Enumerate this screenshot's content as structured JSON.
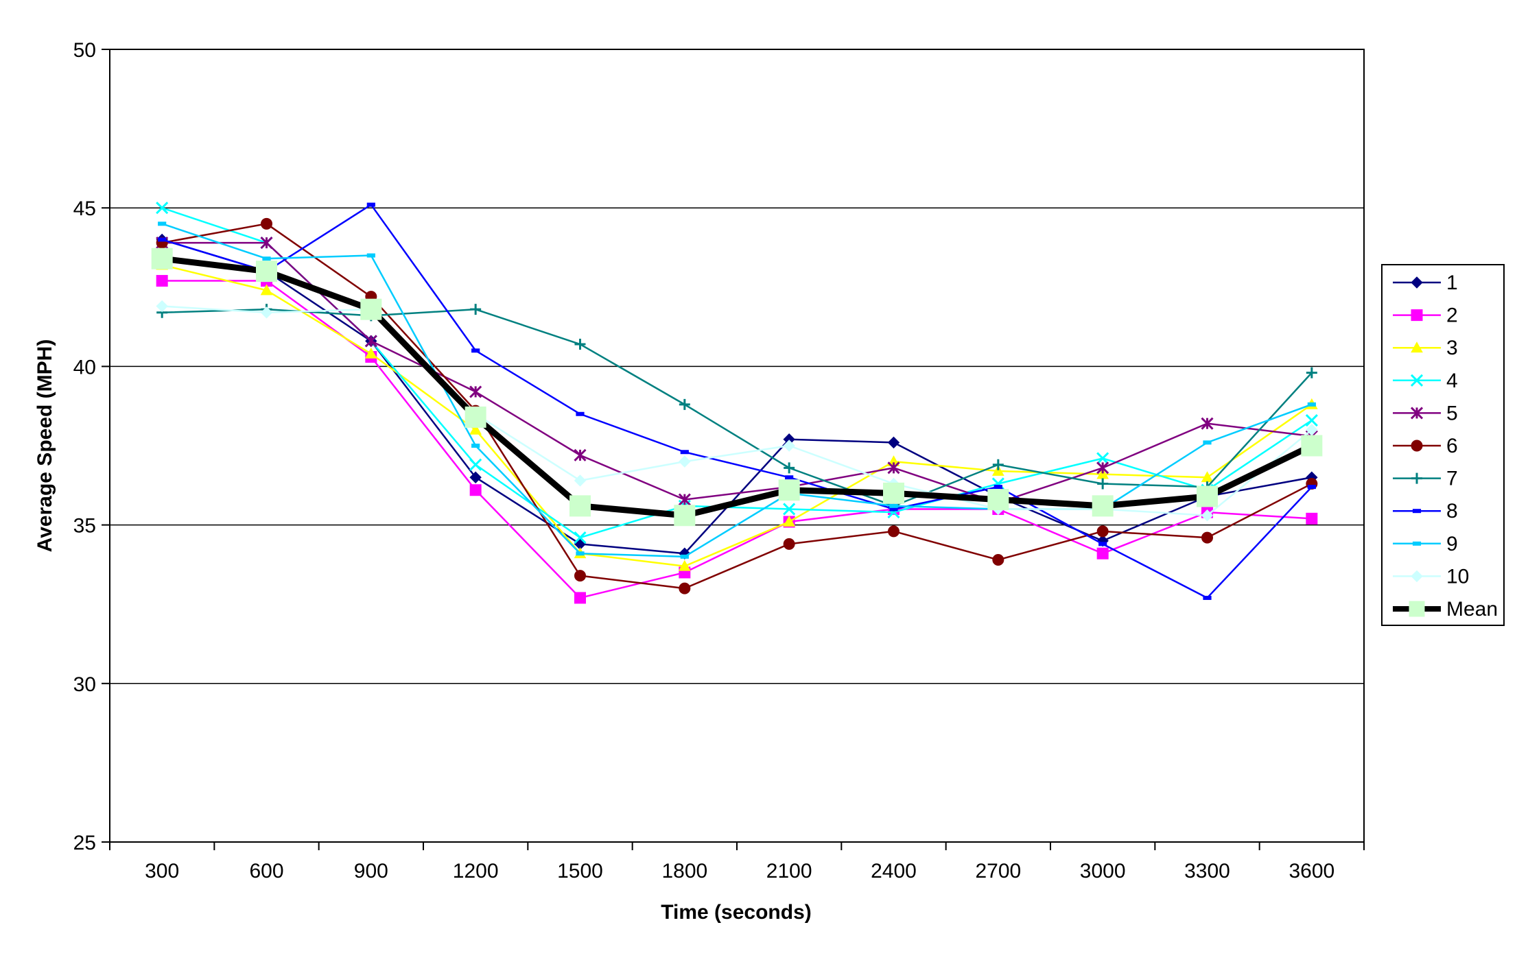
{
  "chart_data": {
    "type": "line",
    "title": "",
    "xlabel": "Time (seconds)",
    "ylabel": "Average Speed (MPH)",
    "ylim": [
      25,
      50
    ],
    "yticks": [
      "25",
      "30",
      "35",
      "40",
      "45",
      "50"
    ],
    "grid": "horizontal",
    "legend_position": "right",
    "categories": [
      "300",
      "600",
      "900",
      "1200",
      "1500",
      "1800",
      "2100",
      "2400",
      "2700",
      "3000",
      "3300",
      "3600"
    ],
    "series": [
      {
        "name": "1",
        "color": "#000080",
        "marker": "diamond",
        "values": [
          44.0,
          43.0,
          40.8,
          36.5,
          34.4,
          34.1,
          37.7,
          37.6,
          35.9,
          34.5,
          35.9,
          36.5
        ]
      },
      {
        "name": "2",
        "color": "#FF00FF",
        "marker": "square",
        "values": [
          42.7,
          42.7,
          40.3,
          36.1,
          32.7,
          33.5,
          35.1,
          35.5,
          35.5,
          34.1,
          35.4,
          35.2
        ]
      },
      {
        "name": "3",
        "color": "#FFFF00",
        "marker": "triangle",
        "values": [
          43.2,
          42.4,
          40.4,
          38.0,
          34.1,
          33.7,
          35.1,
          37.0,
          36.7,
          36.6,
          36.5,
          38.8
        ]
      },
      {
        "name": "4",
        "color": "#00FFFF",
        "marker": "x",
        "values": [
          45.0,
          43.9,
          40.8,
          36.9,
          34.6,
          35.6,
          35.5,
          35.4,
          36.3,
          37.1,
          36.1,
          38.3
        ]
      },
      {
        "name": "5",
        "color": "#800080",
        "marker": "star",
        "values": [
          43.9,
          43.9,
          40.8,
          39.2,
          37.2,
          35.8,
          36.2,
          36.8,
          35.7,
          36.8,
          38.2,
          37.8
        ]
      },
      {
        "name": "6",
        "color": "#800000",
        "marker": "circle",
        "values": [
          43.9,
          44.5,
          42.2,
          38.6,
          33.4,
          33.0,
          34.4,
          34.8,
          33.9,
          34.8,
          34.6,
          36.3
        ]
      },
      {
        "name": "7",
        "color": "#008080",
        "marker": "plus",
        "values": [
          41.7,
          41.8,
          41.6,
          41.8,
          40.7,
          38.8,
          36.8,
          35.6,
          36.9,
          36.3,
          36.2,
          39.8
        ]
      },
      {
        "name": "8",
        "color": "#0000FF",
        "marker": "dash",
        "values": [
          44.0,
          43.0,
          45.1,
          40.5,
          38.5,
          37.3,
          36.5,
          35.5,
          36.2,
          34.4,
          32.7,
          36.2
        ]
      },
      {
        "name": "9",
        "color": "#00CCFF",
        "marker": "dash",
        "values": [
          44.5,
          43.4,
          43.5,
          37.5,
          34.1,
          34.0,
          36.0,
          35.6,
          35.5,
          35.5,
          37.6,
          38.8
        ]
      },
      {
        "name": "10",
        "color": "#CCFFFF",
        "marker": "diamond",
        "values": [
          41.9,
          41.7,
          41.8,
          38.5,
          36.4,
          37.0,
          37.5,
          36.3,
          35.5,
          35.5,
          35.3,
          38.0
        ]
      },
      {
        "name": "Mean",
        "color": "#000000",
        "marker": "square",
        "marker_fill": "#CCFFCC",
        "bold": true,
        "values": [
          43.4,
          43.0,
          41.8,
          38.4,
          35.6,
          35.3,
          36.1,
          36.0,
          35.8,
          35.6,
          35.9,
          37.5
        ]
      }
    ]
  }
}
